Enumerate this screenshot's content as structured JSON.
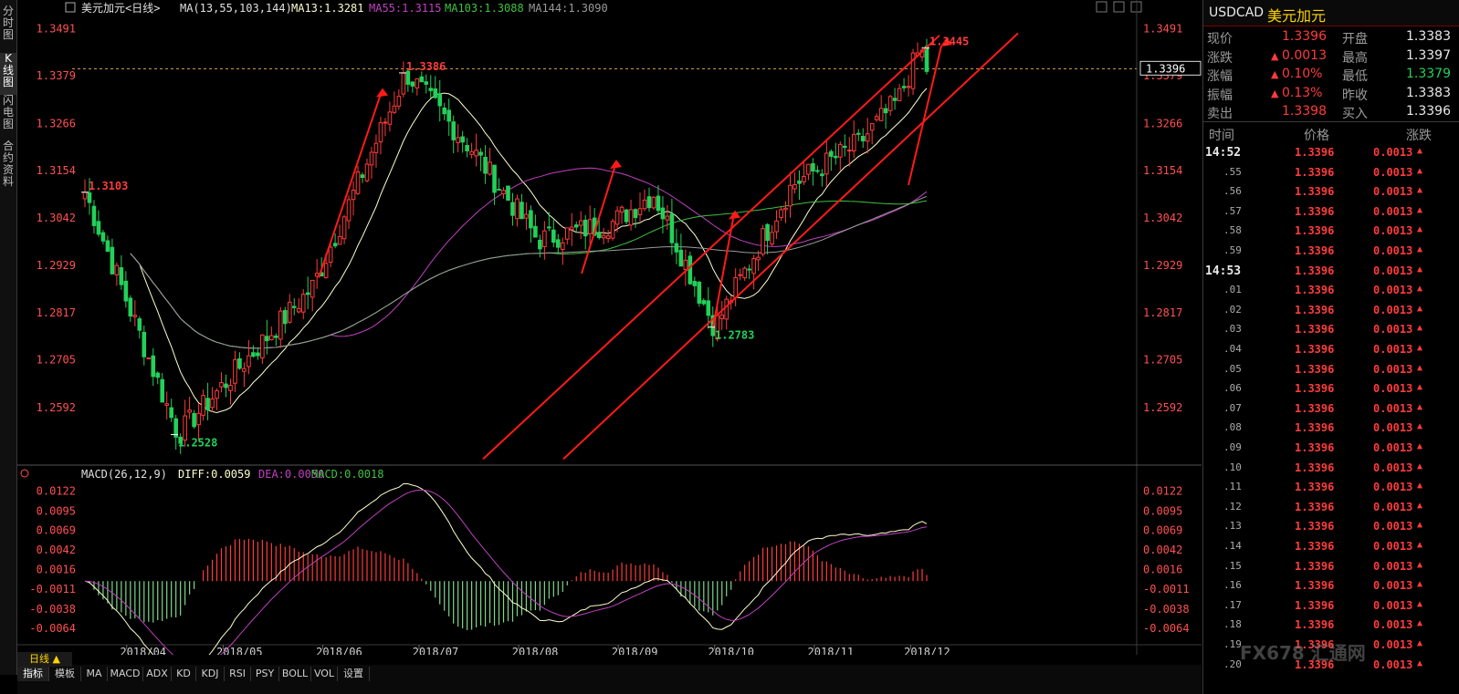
{
  "left_tabs": [
    {
      "label": "分时图"
    },
    {
      "label": "K线图"
    },
    {
      "label": "闪电图"
    },
    {
      "label": "合约资料"
    }
  ],
  "chart_header": {
    "symbol_period": "美元加元<日线>",
    "ma_params": "MA(13,55,103,144)",
    "ma13": "MA13:1.3281",
    "ma55": "MA55:1.3115",
    "ma103": "MA103:1.3088",
    "ma144": "MA144:1.3090",
    "colors": {
      "ma13": "#ffffcc",
      "ma55": "#c040c0",
      "ma103": "#40c040",
      "ma144": "#9a9a9a"
    }
  },
  "chart_data": [
    {
      "type": "candlestick",
      "title": "美元加元<日线>",
      "y_ticks": [
        "1.3491",
        "1.3379",
        "1.3266",
        "1.3154",
        "1.3042",
        "1.2929",
        "1.2817",
        "1.2705",
        "1.2592"
      ],
      "ylim": [
        1.246,
        1.352
      ],
      "x_ticks": [
        "2018/04",
        "2018/05",
        "2018/06",
        "2018/07",
        "2018/08",
        "2018/09",
        "2018/10",
        "2018/11",
        "2018/12"
      ],
      "current_price": "1.3396",
      "annotations": [
        {
          "text": "1.3103",
          "value": 1.3103,
          "color": "#ff3b3b"
        },
        {
          "text": "1.2528",
          "value": 1.2528,
          "color": "#22d05a"
        },
        {
          "text": "1.3386",
          "value": 1.3386,
          "color": "#ff3b3b"
        },
        {
          "text": "1.2783",
          "value": 1.2783,
          "color": "#22d05a"
        },
        {
          "text": "1.3445",
          "value": 1.3445,
          "color": "#ff3b3b"
        }
      ],
      "key_closes": [
        {
          "date": "2018/03/19",
          "value": 1.3103
        },
        {
          "date": "2018/04/17",
          "value": 1.2528
        },
        {
          "date": "2018/05/29",
          "value": 1.288
        },
        {
          "date": "2018/06/27",
          "value": 1.3386
        },
        {
          "date": "2018/07/18",
          "value": 1.32
        },
        {
          "date": "2018/08/07",
          "value": 1.299
        },
        {
          "date": "2018/08/30",
          "value": 1.303
        },
        {
          "date": "2018/09/12",
          "value": 1.31
        },
        {
          "date": "2018/10/01",
          "value": 1.2783
        },
        {
          "date": "2018/10/25",
          "value": 1.312
        },
        {
          "date": "2018/11/15",
          "value": 1.322
        },
        {
          "date": "2018/11/27",
          "value": 1.332
        },
        {
          "date": "2018/12/04",
          "value": 1.3445
        },
        {
          "date": "2018/12/06",
          "value": 1.3396
        }
      ],
      "series": [
        {
          "name": "MA13",
          "last": 1.3281,
          "color": "#ffffcc"
        },
        {
          "name": "MA55",
          "last": 1.3115,
          "color": "#c040c0"
        },
        {
          "name": "MA103",
          "last": 1.3088,
          "color": "#40c040"
        },
        {
          "name": "MA144",
          "last": 1.309,
          "color": "#9a9a9a"
        }
      ]
    },
    {
      "type": "bar",
      "title": "MACD(26,12,9)",
      "legend": [
        "DIFF:0.0059",
        "DEA:0.0050",
        "MACD:0.0018"
      ],
      "y_ticks": [
        "0.0122",
        "0.0095",
        "0.0069",
        "0.0042",
        "0.0016",
        "-0.0011",
        "-0.0038",
        "-0.0064"
      ],
      "ylim": [
        -0.0085,
        0.0135
      ],
      "series": [
        {
          "name": "DIFF",
          "last": 0.0059,
          "color": "#ffffcc"
        },
        {
          "name": "DEA",
          "last": 0.005,
          "color": "#c040c0"
        },
        {
          "name": "MACD",
          "last": 0.0018,
          "color": "#40c040"
        }
      ]
    }
  ],
  "quote_panel": {
    "symbol": "USDCAD",
    "name": "美元加元",
    "stats": [
      {
        "label": "现价",
        "value": "1.3396",
        "label2": "开盘",
        "value2": "1.3383"
      },
      {
        "label": "涨跌",
        "value": "0.0013",
        "label2": "最高",
        "value2": "1.3397"
      },
      {
        "label": "涨幅",
        "value": "0.10%",
        "label2": "最低",
        "value2": "1.3379"
      },
      {
        "label": "振幅",
        "value": "0.13%",
        "label2": "昨收",
        "value2": "1.3383"
      },
      {
        "label": "卖出",
        "value": "1.3398",
        "label2": "买入",
        "value2": "1.3396"
      }
    ],
    "tick_headers": [
      "时间",
      "价格",
      "涨跌"
    ],
    "ticks": [
      {
        "time": "14:52",
        "price": "1.3396",
        "change": "0.0013"
      },
      {
        "time": ".55",
        "price": "1.3396",
        "change": "0.0013"
      },
      {
        "time": ".56",
        "price": "1.3396",
        "change": "0.0013"
      },
      {
        "time": ".57",
        "price": "1.3396",
        "change": "0.0013"
      },
      {
        "time": ".58",
        "price": "1.3396",
        "change": "0.0013"
      },
      {
        "time": ".59",
        "price": "1.3396",
        "change": "0.0013"
      },
      {
        "time": "14:53",
        "price": "1.3396",
        "change": "0.0013"
      },
      {
        "time": ".01",
        "price": "1.3396",
        "change": "0.0013"
      },
      {
        "time": ".02",
        "price": "1.3396",
        "change": "0.0013"
      },
      {
        "time": ".03",
        "price": "1.3396",
        "change": "0.0013"
      },
      {
        "time": ".04",
        "price": "1.3396",
        "change": "0.0013"
      },
      {
        "time": ".05",
        "price": "1.3396",
        "change": "0.0013"
      },
      {
        "time": ".06",
        "price": "1.3396",
        "change": "0.0013"
      },
      {
        "time": ".07",
        "price": "1.3396",
        "change": "0.0013"
      },
      {
        "time": ".08",
        "price": "1.3396",
        "change": "0.0013"
      },
      {
        "time": ".09",
        "price": "1.3396",
        "change": "0.0013"
      },
      {
        "time": ".10",
        "price": "1.3396",
        "change": "0.0013"
      },
      {
        "time": ".11",
        "price": "1.3396",
        "change": "0.0013"
      },
      {
        "time": ".12",
        "price": "1.3396",
        "change": "0.0013"
      },
      {
        "time": ".13",
        "price": "1.3396",
        "change": "0.0013"
      },
      {
        "time": ".14",
        "price": "1.3396",
        "change": "0.0013"
      },
      {
        "time": ".15",
        "price": "1.3396",
        "change": "0.0013"
      },
      {
        "time": ".16",
        "price": "1.3396",
        "change": "0.0013"
      },
      {
        "time": ".17",
        "price": "1.3396",
        "change": "0.0013"
      },
      {
        "time": ".18",
        "price": "1.3396",
        "change": "0.0013"
      },
      {
        "time": ".19",
        "price": "1.3396",
        "change": "0.0013"
      },
      {
        "time": ".20",
        "price": "1.3396",
        "change": "0.0013"
      }
    ]
  },
  "period_label": "日线 ▲",
  "bottom_tabs": [
    "指标",
    "模板",
    "MA",
    "MACD",
    "ADX",
    "KD",
    "KDJ",
    "RSI",
    "PSY",
    "BOLL",
    "VOL",
    "设置"
  ],
  "watermark": "FX678 汇通网",
  "colors": {
    "up": "#ff3b3b",
    "down": "#22d05a",
    "background": "#000000",
    "trend": "#ff1a1a"
  }
}
